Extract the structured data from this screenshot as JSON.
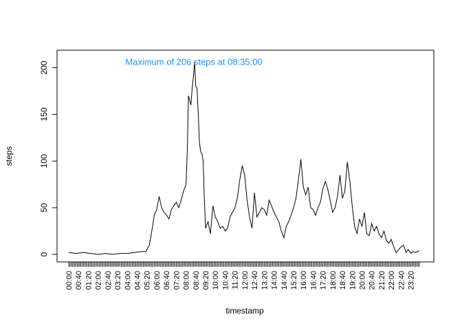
{
  "chart_data": {
    "type": "line",
    "title": "",
    "xlabel": "timestamp",
    "ylabel": "steps",
    "ylim": [
      0,
      206
    ],
    "yticks": [
      0,
      50,
      100,
      150,
      200
    ],
    "grid": false,
    "legend": "none",
    "line_color": "#000000",
    "annotation": {
      "text": "Maximum of 206 steps at 08:35:00",
      "color": "#1e90ff",
      "x": "08:35",
      "y": 206
    },
    "xtick_labels": [
      "00:00",
      "00:40",
      "01:20",
      "02:00",
      "02:40",
      "03:20",
      "04:00",
      "04:40",
      "05:20",
      "06:00",
      "06:40",
      "07:20",
      "08:00",
      "08:40",
      "09:20",
      "10:00",
      "10:40",
      "11:20",
      "12:00",
      "12:40",
      "13:20",
      "14:00",
      "14:40",
      "15:20",
      "16:00",
      "16:40",
      "17:20",
      "18:00",
      "18:40",
      "19:20",
      "20:00",
      "20:40",
      "21:20",
      "22:00",
      "22:40",
      "23:20"
    ],
    "x": [
      "00:00",
      "00:30",
      "01:00",
      "01:30",
      "02:00",
      "02:30",
      "03:00",
      "03:30",
      "04:00",
      "04:30",
      "05:00",
      "05:15",
      "05:30",
      "05:40",
      "05:50",
      "06:00",
      "06:10",
      "06:20",
      "06:30",
      "06:40",
      "06:50",
      "07:00",
      "07:10",
      "07:20",
      "07:30",
      "07:40",
      "07:50",
      "08:00",
      "08:05",
      "08:10",
      "08:15",
      "08:20",
      "08:25",
      "08:30",
      "08:35",
      "08:40",
      "08:45",
      "08:50",
      "08:55",
      "09:00",
      "09:05",
      "09:10",
      "09:15",
      "09:20",
      "09:30",
      "09:40",
      "09:50",
      "10:00",
      "10:10",
      "10:20",
      "10:30",
      "10:40",
      "10:50",
      "11:00",
      "11:10",
      "11:20",
      "11:30",
      "11:40",
      "11:50",
      "12:00",
      "12:10",
      "12:20",
      "12:30",
      "12:40",
      "12:50",
      "13:00",
      "13:10",
      "13:20",
      "13:30",
      "13:40",
      "13:50",
      "14:00",
      "14:10",
      "14:20",
      "14:30",
      "14:40",
      "14:50",
      "15:00",
      "15:10",
      "15:20",
      "15:30",
      "15:40",
      "15:50",
      "16:00",
      "16:10",
      "16:20",
      "16:30",
      "16:40",
      "16:50",
      "17:00",
      "17:10",
      "17:20",
      "17:30",
      "17:40",
      "17:50",
      "18:00",
      "18:10",
      "18:20",
      "18:30",
      "18:40",
      "18:50",
      "19:00",
      "19:10",
      "19:20",
      "19:30",
      "19:40",
      "19:50",
      "20:00",
      "20:10",
      "20:20",
      "20:30",
      "20:40",
      "20:50",
      "21:00",
      "21:10",
      "21:20",
      "21:30",
      "21:40",
      "21:50",
      "22:00",
      "22:10",
      "22:20",
      "22:30",
      "22:40",
      "22:50",
      "23:00",
      "23:10",
      "23:20",
      "23:30",
      "23:40",
      "23:55"
    ],
    "values": [
      2,
      1,
      2,
      1,
      0,
      1,
      0,
      1,
      1,
      2,
      3,
      3,
      10,
      25,
      42,
      48,
      62,
      50,
      45,
      42,
      38,
      48,
      52,
      56,
      50,
      58,
      68,
      75,
      110,
      170,
      165,
      160,
      178,
      190,
      206,
      180,
      178,
      150,
      120,
      110,
      108,
      100,
      60,
      28,
      35,
      22,
      52,
      40,
      35,
      28,
      30,
      25,
      28,
      40,
      45,
      50,
      60,
      80,
      95,
      85,
      58,
      40,
      28,
      66,
      40,
      45,
      50,
      48,
      42,
      58,
      52,
      45,
      40,
      35,
      25,
      18,
      30,
      35,
      42,
      50,
      60,
      80,
      102,
      72,
      64,
      72,
      50,
      48,
      42,
      50,
      56,
      70,
      78,
      70,
      58,
      45,
      50,
      62,
      85,
      60,
      68,
      99,
      80,
      52,
      30,
      22,
      38,
      30,
      45,
      22,
      20,
      33,
      25,
      30,
      22,
      18,
      25,
      15,
      12,
      16,
      8,
      2,
      5,
      8,
      10,
      2,
      5,
      1,
      3,
      2,
      4
    ]
  }
}
